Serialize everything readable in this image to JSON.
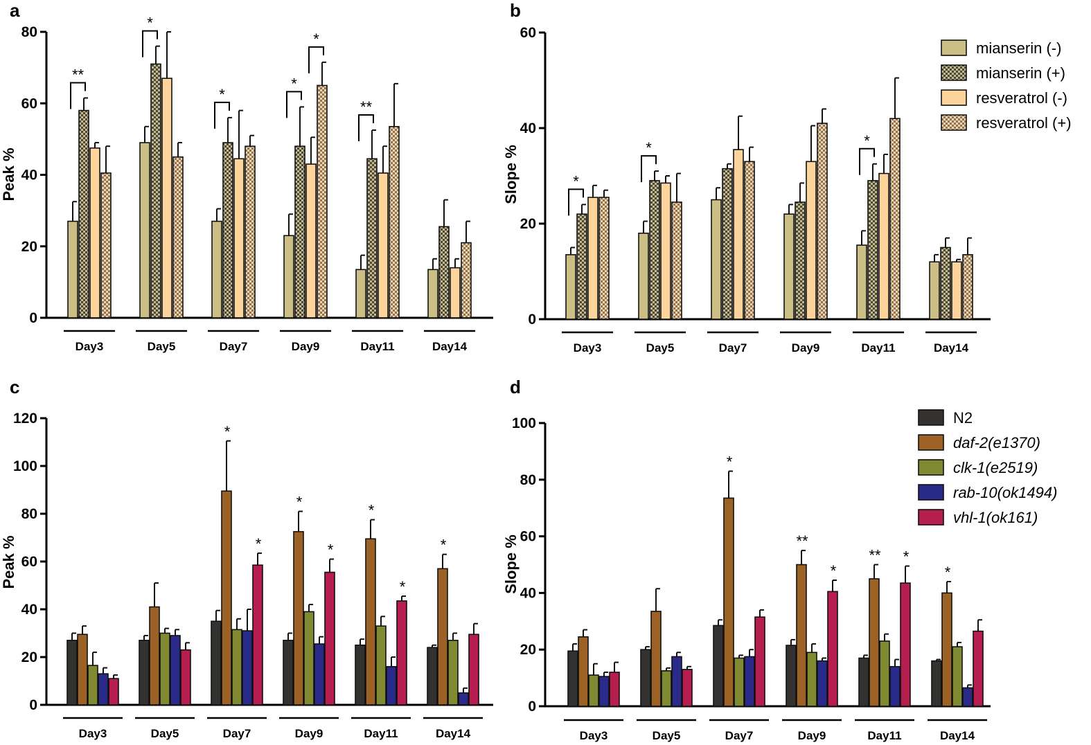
{
  "chart_data": [
    {
      "panel": "a",
      "type": "bar",
      "title": "",
      "xlabel": "",
      "ylabel": "Peak %",
      "ylim": [
        0,
        80
      ],
      "yticks": [
        0,
        20,
        40,
        60,
        80
      ],
      "categories": [
        "Day3",
        "Day5",
        "Day7",
        "Day9",
        "Day11",
        "Day14"
      ],
      "series": [
        {
          "name": "mianserin (-)",
          "color": "#cbbf86",
          "pattern": "solid",
          "values": [
            27,
            49,
            27,
            23,
            13.5,
            13.5
          ],
          "errors": [
            5.5,
            4.5,
            3.5,
            6,
            4,
            3
          ]
        },
        {
          "name": "mianserin (+)",
          "color": "#8a8060",
          "pattern": "check",
          "values": [
            58,
            71,
            49,
            48,
            44.5,
            25.5
          ],
          "errors": [
            3.5,
            5,
            7,
            11,
            8,
            7.5
          ]
        },
        {
          "name": "resveratrol (-)",
          "color": "#fcd49c",
          "pattern": "solid",
          "values": [
            47.5,
            67,
            44.5,
            43,
            40.5,
            14
          ],
          "errors": [
            1.5,
            13,
            13.5,
            7.5,
            7.5,
            2.5
          ]
        },
        {
          "name": "resveratrol (+)",
          "color": "#d9b591",
          "pattern": "check",
          "values": [
            40.5,
            45,
            48,
            65,
            53.5,
            21
          ],
          "errors": [
            7.5,
            4,
            3,
            6.5,
            12,
            6
          ]
        }
      ],
      "significance": [
        {
          "category": "Day3",
          "label": "**"
        },
        {
          "category": "Day5",
          "label": "*"
        },
        {
          "category": "Day7",
          "label": "*"
        },
        {
          "category": "Day9",
          "label": "*"
        },
        {
          "category": "Day9",
          "label": "*"
        },
        {
          "category": "Day11",
          "label": "**"
        }
      ]
    },
    {
      "panel": "b",
      "type": "bar",
      "title": "",
      "xlabel": "",
      "ylabel": "Slope %",
      "ylim": [
        0,
        60
      ],
      "yticks": [
        0,
        20,
        40,
        60
      ],
      "categories": [
        "Day3",
        "Day5",
        "Day7",
        "Day9",
        "Day11",
        "Day14"
      ],
      "legend": "top-right",
      "series": [
        {
          "name": "mianserin (-)",
          "color": "#cbbf86",
          "pattern": "solid",
          "values": [
            13.5,
            18,
            25,
            22,
            15.5,
            12
          ],
          "errors": [
            1.5,
            2.5,
            2.5,
            2,
            3,
            1.5
          ]
        },
        {
          "name": "mianserin (+)",
          "color": "#8a8060",
          "pattern": "check",
          "values": [
            22,
            29,
            31.5,
            24.5,
            29,
            15
          ],
          "errors": [
            2,
            2,
            1,
            4,
            3.5,
            2
          ]
        },
        {
          "name": "resveratrol (-)",
          "color": "#fcd49c",
          "pattern": "solid",
          "values": [
            25.5,
            28.5,
            35.5,
            33,
            30.5,
            12
          ],
          "errors": [
            2.5,
            1.5,
            7,
            7.5,
            4,
            0.5
          ]
        },
        {
          "name": "resveratrol (+)",
          "color": "#d9b591",
          "pattern": "check",
          "values": [
            25.5,
            24.5,
            33,
            41,
            42,
            13.5
          ],
          "errors": [
            1.5,
            6,
            3,
            3,
            8.5,
            3.5
          ]
        }
      ],
      "significance": [
        {
          "category": "Day3",
          "label": "*"
        },
        {
          "category": "Day5",
          "label": "*"
        },
        {
          "category": "Day11",
          "label": "*"
        }
      ]
    },
    {
      "panel": "c",
      "type": "bar",
      "title": "",
      "xlabel": "",
      "ylabel": "Peak %",
      "ylim": [
        0,
        120
      ],
      "yticks": [
        0,
        20,
        40,
        60,
        80,
        100,
        120
      ],
      "categories": [
        "Day3",
        "Day5",
        "Day7",
        "Day9",
        "Day11",
        "Day14"
      ],
      "series": [
        {
          "name": "N2",
          "color": "#333230",
          "pattern": "solid",
          "values": [
            27,
            27,
            35,
            27,
            25,
            24
          ],
          "errors": [
            3,
            2,
            4.5,
            3,
            2.5,
            1
          ]
        },
        {
          "name": "daf-2(e1370)",
          "color": "#9c6225",
          "pattern": "solid",
          "values": [
            29.5,
            41,
            89.5,
            72.5,
            69.5,
            57
          ],
          "errors": [
            3.5,
            10,
            21,
            8.5,
            8,
            6
          ]
        },
        {
          "name": "clk-1(e2519)",
          "color": "#808a33",
          "pattern": "solid",
          "values": [
            16.5,
            30,
            31.5,
            39,
            33,
            27
          ],
          "errors": [
            5.5,
            2,
            4.5,
            3,
            4,
            3
          ]
        },
        {
          "name": "rab-10(ok1494)",
          "color": "#2a2a8a",
          "pattern": "solid",
          "values": [
            13,
            29,
            31,
            25.5,
            16,
            5
          ],
          "errors": [
            2.5,
            2.5,
            9,
            3,
            4,
            2
          ]
        },
        {
          "name": "vhl-1(ok161)",
          "color": "#b51e4e",
          "pattern": "solid",
          "values": [
            11,
            23,
            58.5,
            55.5,
            43.5,
            29.5
          ],
          "errors": [
            1.5,
            3,
            5,
            5.5,
            2,
            4.5
          ]
        }
      ],
      "significance": [
        {
          "category": "Day7",
          "label": "*"
        },
        {
          "category": "Day7",
          "label": "*"
        },
        {
          "category": "Day9",
          "label": "*"
        },
        {
          "category": "Day9",
          "label": "*"
        },
        {
          "category": "Day11",
          "label": "*"
        },
        {
          "category": "Day11",
          "label": "*"
        },
        {
          "category": "Day14",
          "label": "*"
        }
      ]
    },
    {
      "panel": "d",
      "type": "bar",
      "title": "",
      "xlabel": "",
      "ylabel": "Slope %",
      "ylim": [
        0,
        100
      ],
      "yticks": [
        0,
        20,
        40,
        60,
        80,
        100
      ],
      "categories": [
        "Day3",
        "Day5",
        "Day7",
        "Day9",
        "Day11",
        "Day14"
      ],
      "legend": "top-right",
      "series": [
        {
          "name": "N2",
          "color": "#333230",
          "pattern": "solid",
          "values": [
            19.5,
            20,
            28.5,
            21.5,
            17,
            16
          ],
          "errors": [
            2.5,
            1,
            2,
            2,
            1,
            0.5
          ]
        },
        {
          "name": "daf-2(e1370)",
          "color": "#9c6225",
          "pattern": "solid",
          "values": [
            24.5,
            33.5,
            73.5,
            50,
            45,
            40
          ],
          "errors": [
            2.5,
            8,
            9.5,
            5,
            5,
            4
          ]
        },
        {
          "name": "clk-1(e2519)",
          "color": "#808a33",
          "pattern": "solid",
          "values": [
            11,
            12.5,
            17,
            19,
            23,
            21
          ],
          "errors": [
            4,
            1,
            1,
            3,
            2.5,
            1.5
          ]
        },
        {
          "name": "rab-10(ok1494)",
          "color": "#2a2a8a",
          "pattern": "solid",
          "values": [
            10.5,
            17.5,
            17.5,
            16,
            14,
            6.5
          ],
          "errors": [
            1.5,
            1.5,
            2.5,
            1,
            2.5,
            1
          ]
        },
        {
          "name": "vhl-1(ok161)",
          "color": "#b51e4e",
          "pattern": "solid",
          "values": [
            12,
            13,
            31.5,
            40.5,
            43.5,
            26.5
          ],
          "errors": [
            3.5,
            1,
            2.5,
            4,
            6,
            4
          ]
        }
      ],
      "significance": [
        {
          "category": "Day7",
          "label": "*"
        },
        {
          "category": "Day9",
          "label": "**"
        },
        {
          "category": "Day9",
          "label": "*"
        },
        {
          "category": "Day11",
          "label": "**"
        },
        {
          "category": "Day11",
          "label": "*"
        },
        {
          "category": "Day14",
          "label": "*"
        }
      ]
    }
  ]
}
